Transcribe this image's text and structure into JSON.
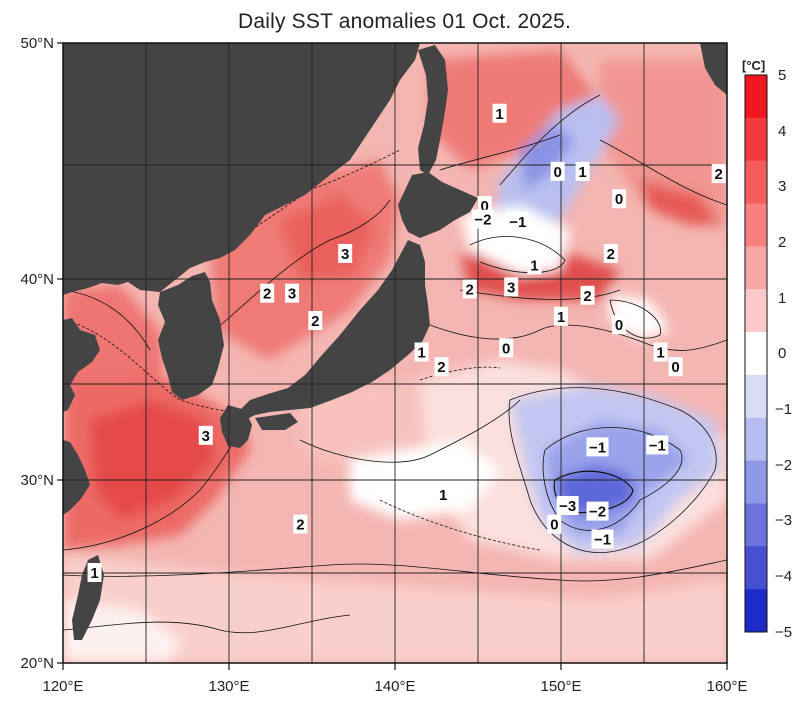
{
  "title": "Daily SST anomalies 01 Oct. 2025.",
  "lat_ticks": [
    "50°N",
    "40°N",
    "30°N",
    "20°N"
  ],
  "lon_ticks": [
    "120°E",
    "130°E",
    "140°E",
    "150°E",
    "160°E"
  ],
  "colorbar": {
    "unit": "[°C]",
    "ticks": [
      "5",
      "4",
      "3",
      "2",
      "1",
      "0",
      "−1",
      "−2",
      "−3",
      "−4",
      "−5"
    ],
    "colors": [
      "#f0181e",
      "#f33a3d",
      "#f55c5c",
      "#f7807f",
      "#f9a5a4",
      "#fbcac8",
      "#ffffff",
      "#d9dcf5",
      "#b6bcef",
      "#8f98e6",
      "#6b74dc",
      "#4651d2",
      "#1f2bc8"
    ]
  },
  "colors": {
    "land": "#444444",
    "ocean_base": "#f4b6b2"
  },
  "contour_labels": [
    {
      "t": "1",
      "lat": 47.1,
      "lon": 146.3
    },
    {
      "t": "0",
      "lat": 44.7,
      "lon": 149.8
    },
    {
      "t": "1",
      "lat": 44.7,
      "lon": 151.3
    },
    {
      "t": "2",
      "lat": 44.6,
      "lon": 159.5
    },
    {
      "t": "0",
      "lat": 43.5,
      "lon": 153.5
    },
    {
      "t": "0",
      "lat": 43.2,
      "lon": 145.4
    },
    {
      "t": "−2",
      "lat": 42.6,
      "lon": 145.3
    },
    {
      "t": "−1",
      "lat": 42.5,
      "lon": 147.4
    },
    {
      "t": "3",
      "lat": 41.1,
      "lon": 137.0
    },
    {
      "t": "2",
      "lat": 41.1,
      "lon": 153.0
    },
    {
      "t": "1",
      "lat": 40.6,
      "lon": 148.4
    },
    {
      "t": "2",
      "lat": 39.3,
      "lon": 132.3
    },
    {
      "t": "3",
      "lat": 39.3,
      "lon": 133.8
    },
    {
      "t": "2",
      "lat": 39.5,
      "lon": 144.5
    },
    {
      "t": "3",
      "lat": 39.6,
      "lon": 147.0
    },
    {
      "t": "2",
      "lat": 39.2,
      "lon": 151.6
    },
    {
      "t": "1",
      "lat": 38.2,
      "lon": 150.0
    },
    {
      "t": "2",
      "lat": 38.0,
      "lon": 135.2
    },
    {
      "t": "0",
      "lat": 37.8,
      "lon": 153.5
    },
    {
      "t": "1",
      "lat": 36.5,
      "lon": 141.6
    },
    {
      "t": "0",
      "lat": 36.7,
      "lon": 146.7
    },
    {
      "t": "2",
      "lat": 35.8,
      "lon": 142.8
    },
    {
      "t": "1",
      "lat": 36.5,
      "lon": 156.0
    },
    {
      "t": "0",
      "lat": 35.8,
      "lon": 156.9
    },
    {
      "t": "3",
      "lat": 32.3,
      "lon": 128.6
    },
    {
      "t": "−1",
      "lat": 31.7,
      "lon": 152.2
    },
    {
      "t": "−1",
      "lat": 31.8,
      "lon": 155.8
    },
    {
      "t": "1",
      "lat": 29.2,
      "lon": 142.9
    },
    {
      "t": "−3",
      "lat": 28.6,
      "lon": 150.4
    },
    {
      "t": "−2",
      "lat": 28.3,
      "lon": 152.2
    },
    {
      "t": "0",
      "lat": 27.6,
      "lon": 149.6
    },
    {
      "t": "2",
      "lat": 27.6,
      "lon": 134.3
    },
    {
      "t": "−1",
      "lat": 26.8,
      "lon": 152.5
    },
    {
      "t": "1",
      "lat": 25.0,
      "lon": 121.9
    }
  ]
}
